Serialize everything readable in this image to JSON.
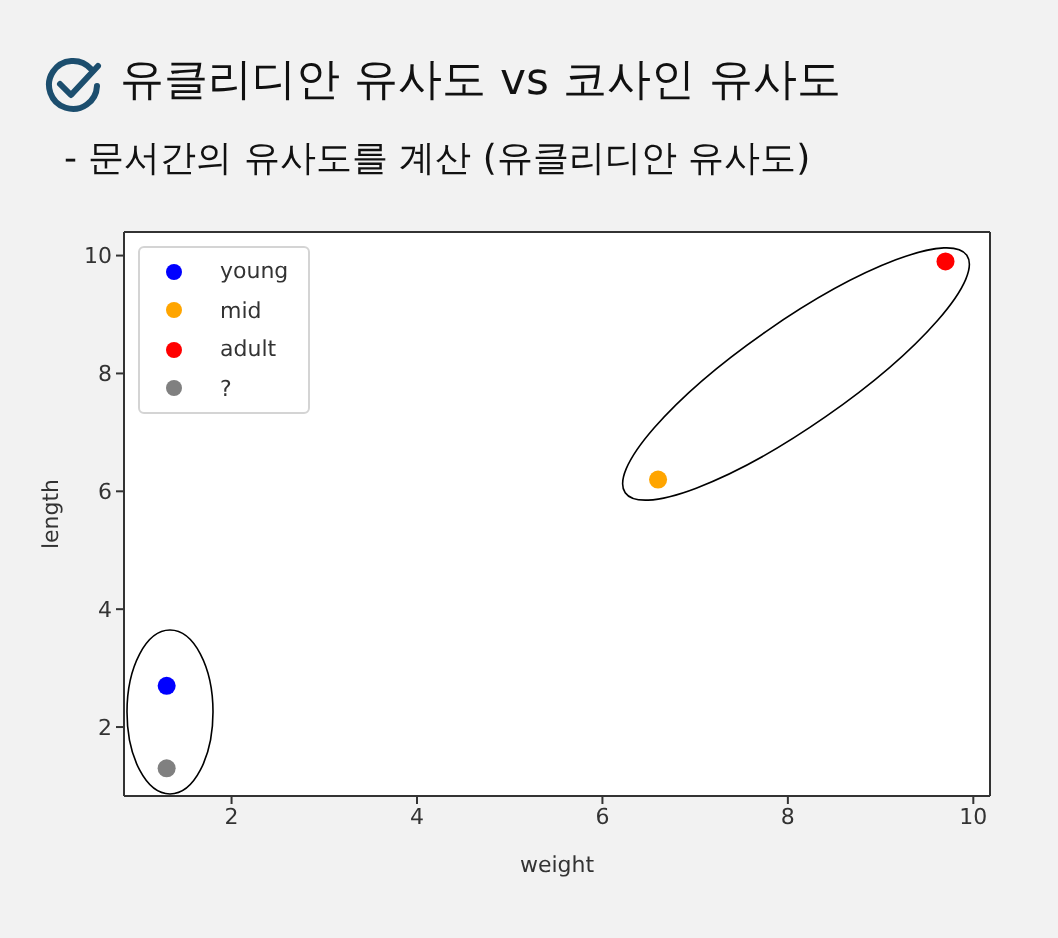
{
  "chart_data": {
    "type": "scatter",
    "title": "유클리디안 유사도 vs 코사인 유사도",
    "subtitle": "- 문서간의 유사도를 계산 (유클리디안 유사도)",
    "xlabel": "weight",
    "ylabel": "length",
    "xlim": [
      0.84,
      10.18
    ],
    "ylim": [
      0.83,
      10.4
    ],
    "xticks": [
      2,
      4,
      6,
      8,
      10
    ],
    "yticks": [
      2,
      4,
      6,
      8,
      10
    ],
    "legend": "top left",
    "grid": false,
    "marker": "circle",
    "series": [
      {
        "name": "young",
        "color": "#0000ff",
        "x": [
          1.3
        ],
        "values": [
          2.7
        ]
      },
      {
        "name": "mid",
        "color": "#ffa500",
        "x": [
          6.6
        ],
        "values": [
          6.2
        ]
      },
      {
        "name": "adult",
        "color": "#ff0000",
        "x": [
          9.7
        ],
        "values": [
          9.9
        ]
      },
      {
        "name": "?",
        "color": "#808080",
        "x": [
          1.3
        ],
        "values": [
          1.3
        ]
      }
    ]
  }
}
